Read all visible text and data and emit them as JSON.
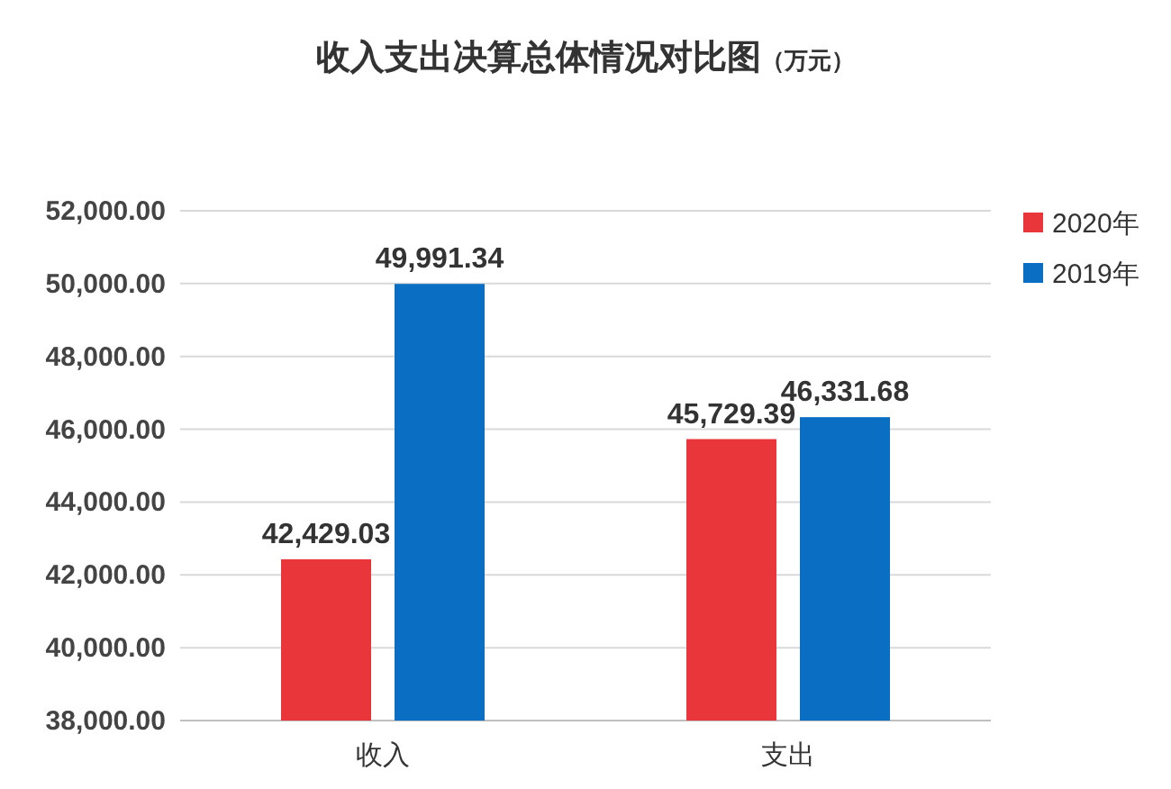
{
  "chart_data": {
    "type": "bar",
    "title": "收入支出决算总体情况对比图",
    "subtitle": "（万元）",
    "categories": [
      "收入",
      "支出"
    ],
    "series": [
      {
        "name": "2020年",
        "color": "#e8363a",
        "values": [
          42429.03,
          45729.39
        ],
        "value_labels": [
          "42,429.03",
          "45,729.39"
        ]
      },
      {
        "name": "2019年",
        "color": "#0a6fc2",
        "values": [
          49991.34,
          46331.68
        ],
        "value_labels": [
          "49,991.34",
          "46,331.68"
        ]
      }
    ],
    "ylim": [
      38000,
      52000
    ],
    "yticks": [
      {
        "value": 38000,
        "label": "38,000.00"
      },
      {
        "value": 40000,
        "label": "40,000.00"
      },
      {
        "value": 42000,
        "label": "42,000.00"
      },
      {
        "value": 44000,
        "label": "44,000.00"
      },
      {
        "value": 46000,
        "label": "46,000.00"
      },
      {
        "value": 48000,
        "label": "48,000.00"
      },
      {
        "value": 50000,
        "label": "50,000.00"
      },
      {
        "value": 52000,
        "label": "52,000.00"
      }
    ],
    "grid": "y",
    "legend": "right"
  }
}
